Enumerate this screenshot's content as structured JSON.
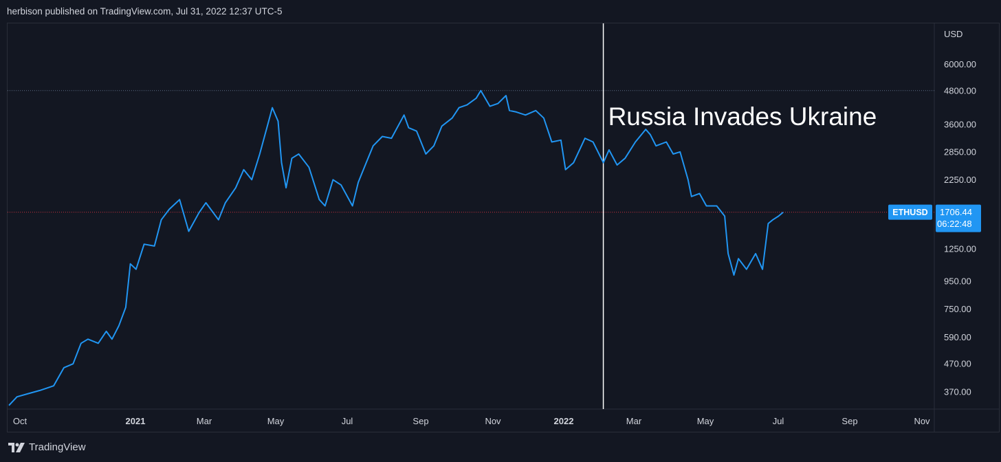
{
  "header": {
    "text": "herbison published on TradingView.com, Jul 31, 2022 12:37 UTC-5"
  },
  "footer": {
    "brand": "TradingView",
    "logo_icon": "tradingview-logo-icon"
  },
  "colors": {
    "background": "#131722",
    "line": "#2196f3",
    "text": "#d1d4dc",
    "axis": "#2a2e39",
    "annotation_line": "#ffffff",
    "price_line": "#f23645"
  },
  "chart_data": {
    "type": "line",
    "symbol": "ETHUSD",
    "currency": "USD",
    "scale": "log",
    "ylim": [
      320,
      8500
    ],
    "x_tick_labels": [
      "Oct",
      "2021",
      "Mar",
      "May",
      "Jul",
      "Sep",
      "Nov",
      "2022",
      "Mar",
      "May",
      "Jul",
      "Sep",
      "Nov"
    ],
    "y_tick_labels": [
      "6000.00",
      "4800.00",
      "3600.00",
      "2850.00",
      "2250.00",
      "1250.00",
      "950.00",
      "750.00",
      "590.00",
      "470.00",
      "370.00"
    ],
    "y_tick_values": [
      6000,
      4800,
      3600,
      2850,
      2250,
      1250,
      950,
      750,
      590,
      470,
      370
    ],
    "last_price": {
      "label": "1706.44",
      "value": 1706.44,
      "countdown": "06:22:48"
    },
    "high_line": 4800,
    "annotation": {
      "text": "Russia Invades Ukraine",
      "x": "2022-02-24"
    },
    "series": [
      {
        "values": [
          [
            "2020-09-23",
            330
          ],
          [
            "2020-09-30",
            355
          ],
          [
            "2020-10-10",
            365
          ],
          [
            "2020-10-20",
            375
          ],
          [
            "2020-11-01",
            390
          ],
          [
            "2020-11-10",
            455
          ],
          [
            "2020-11-18",
            470
          ],
          [
            "2020-11-25",
            560
          ],
          [
            "2020-12-01",
            580
          ],
          [
            "2020-12-10",
            560
          ],
          [
            "2020-12-17",
            620
          ],
          [
            "2020-12-22",
            580
          ],
          [
            "2020-12-28",
            650
          ],
          [
            "2021-01-03",
            760
          ],
          [
            "2021-01-07",
            1100
          ],
          [
            "2021-01-12",
            1050
          ],
          [
            "2021-01-19",
            1300
          ],
          [
            "2021-01-28",
            1280
          ],
          [
            "2021-02-03",
            1600
          ],
          [
            "2021-02-10",
            1750
          ],
          [
            "2021-02-19",
            1900
          ],
          [
            "2021-02-27",
            1450
          ],
          [
            "2021-03-08",
            1700
          ],
          [
            "2021-03-14",
            1850
          ],
          [
            "2021-03-25",
            1600
          ],
          [
            "2021-03-31",
            1850
          ],
          [
            "2021-04-09",
            2100
          ],
          [
            "2021-04-16",
            2450
          ],
          [
            "2021-04-23",
            2250
          ],
          [
            "2021-04-30",
            2800
          ],
          [
            "2021-05-07",
            3600
          ],
          [
            "2021-05-11",
            4150
          ],
          [
            "2021-05-16",
            3700
          ],
          [
            "2021-05-19",
            2600
          ],
          [
            "2021-05-23",
            2100
          ],
          [
            "2021-05-28",
            2700
          ],
          [
            "2021-06-03",
            2800
          ],
          [
            "2021-06-12",
            2500
          ],
          [
            "2021-06-21",
            1900
          ],
          [
            "2021-06-26",
            1800
          ],
          [
            "2021-07-03",
            2250
          ],
          [
            "2021-07-10",
            2150
          ],
          [
            "2021-07-20",
            1800
          ],
          [
            "2021-07-25",
            2200
          ],
          [
            "2021-08-01",
            2600
          ],
          [
            "2021-08-07",
            3000
          ],
          [
            "2021-08-15",
            3250
          ],
          [
            "2021-08-23",
            3200
          ],
          [
            "2021-09-03",
            3900
          ],
          [
            "2021-09-07",
            3500
          ],
          [
            "2021-09-14",
            3400
          ],
          [
            "2021-09-22",
            2800
          ],
          [
            "2021-09-29",
            3000
          ],
          [
            "2021-10-06",
            3550
          ],
          [
            "2021-10-15",
            3800
          ],
          [
            "2021-10-21",
            4150
          ],
          [
            "2021-10-28",
            4250
          ],
          [
            "2021-11-05",
            4500
          ],
          [
            "2021-11-09",
            4800
          ],
          [
            "2021-11-17",
            4200
          ],
          [
            "2021-11-24",
            4300
          ],
          [
            "2021-12-01",
            4600
          ],
          [
            "2021-12-04",
            4050
          ],
          [
            "2021-12-10",
            4000
          ],
          [
            "2021-12-18",
            3900
          ],
          [
            "2021-12-27",
            4050
          ],
          [
            "2022-01-03",
            3800
          ],
          [
            "2022-01-10",
            3100
          ],
          [
            "2022-01-18",
            3150
          ],
          [
            "2022-01-22",
            2450
          ],
          [
            "2022-01-29",
            2600
          ],
          [
            "2022-02-08",
            3200
          ],
          [
            "2022-02-15",
            3100
          ],
          [
            "2022-02-24",
            2600
          ],
          [
            "2022-03-01",
            2900
          ],
          [
            "2022-03-08",
            2550
          ],
          [
            "2022-03-15",
            2700
          ],
          [
            "2022-03-24",
            3100
          ],
          [
            "2022-04-02",
            3450
          ],
          [
            "2022-04-06",
            3300
          ],
          [
            "2022-04-11",
            3000
          ],
          [
            "2022-04-20",
            3100
          ],
          [
            "2022-04-26",
            2800
          ],
          [
            "2022-05-02",
            2850
          ],
          [
            "2022-05-09",
            2250
          ],
          [
            "2022-05-12",
            1950
          ],
          [
            "2022-05-19",
            2000
          ],
          [
            "2022-05-25",
            1800
          ],
          [
            "2022-06-03",
            1800
          ],
          [
            "2022-06-10",
            1650
          ],
          [
            "2022-06-13",
            1200
          ],
          [
            "2022-06-18",
            1000
          ],
          [
            "2022-06-22",
            1150
          ],
          [
            "2022-06-29",
            1050
          ],
          [
            "2022-07-07",
            1200
          ],
          [
            "2022-07-13",
            1050
          ],
          [
            "2022-07-18",
            1550
          ],
          [
            "2022-07-22",
            1600
          ],
          [
            "2022-07-27",
            1650
          ],
          [
            "2022-07-31",
            1706.44
          ]
        ]
      }
    ]
  }
}
